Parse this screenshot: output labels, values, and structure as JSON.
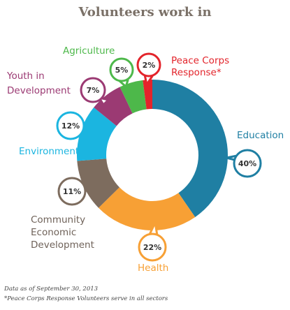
{
  "chart_data": {
    "type": "pie",
    "title": "Volunteers work in",
    "categories": [
      "Education",
      "Health",
      "Community Economic Development",
      "Environment",
      "Youth in Development",
      "Agriculture",
      "Peace Corps Response*"
    ],
    "values": [
      40,
      22,
      11,
      12,
      7,
      5,
      2
    ],
    "value_labels": [
      "40%",
      "22%",
      "11%",
      "12%",
      "7%",
      "5%",
      "2%"
    ],
    "colors": [
      "#1f7fa3",
      "#f7a035",
      "#7d6c5e",
      "#1bb5e0",
      "#9b3a73",
      "#4db84a",
      "#e3242b"
    ],
    "center_hole": true
  },
  "labels": {
    "education": "Education",
    "health": "Health",
    "community_line1": "Community",
    "community_line2": "Economic",
    "community_line3": "Development",
    "environment": "Environment",
    "youth_line1": "Youth in",
    "youth_line2": "Development",
    "agriculture": "Agriculture",
    "pcr_line1": "Peace Corps",
    "pcr_line2": "Response*"
  },
  "footnotes": {
    "as_of": "Data as of September 30, 2013",
    "pcr_note": "*Peace Corps Response Volunteers serve in all sectors"
  }
}
